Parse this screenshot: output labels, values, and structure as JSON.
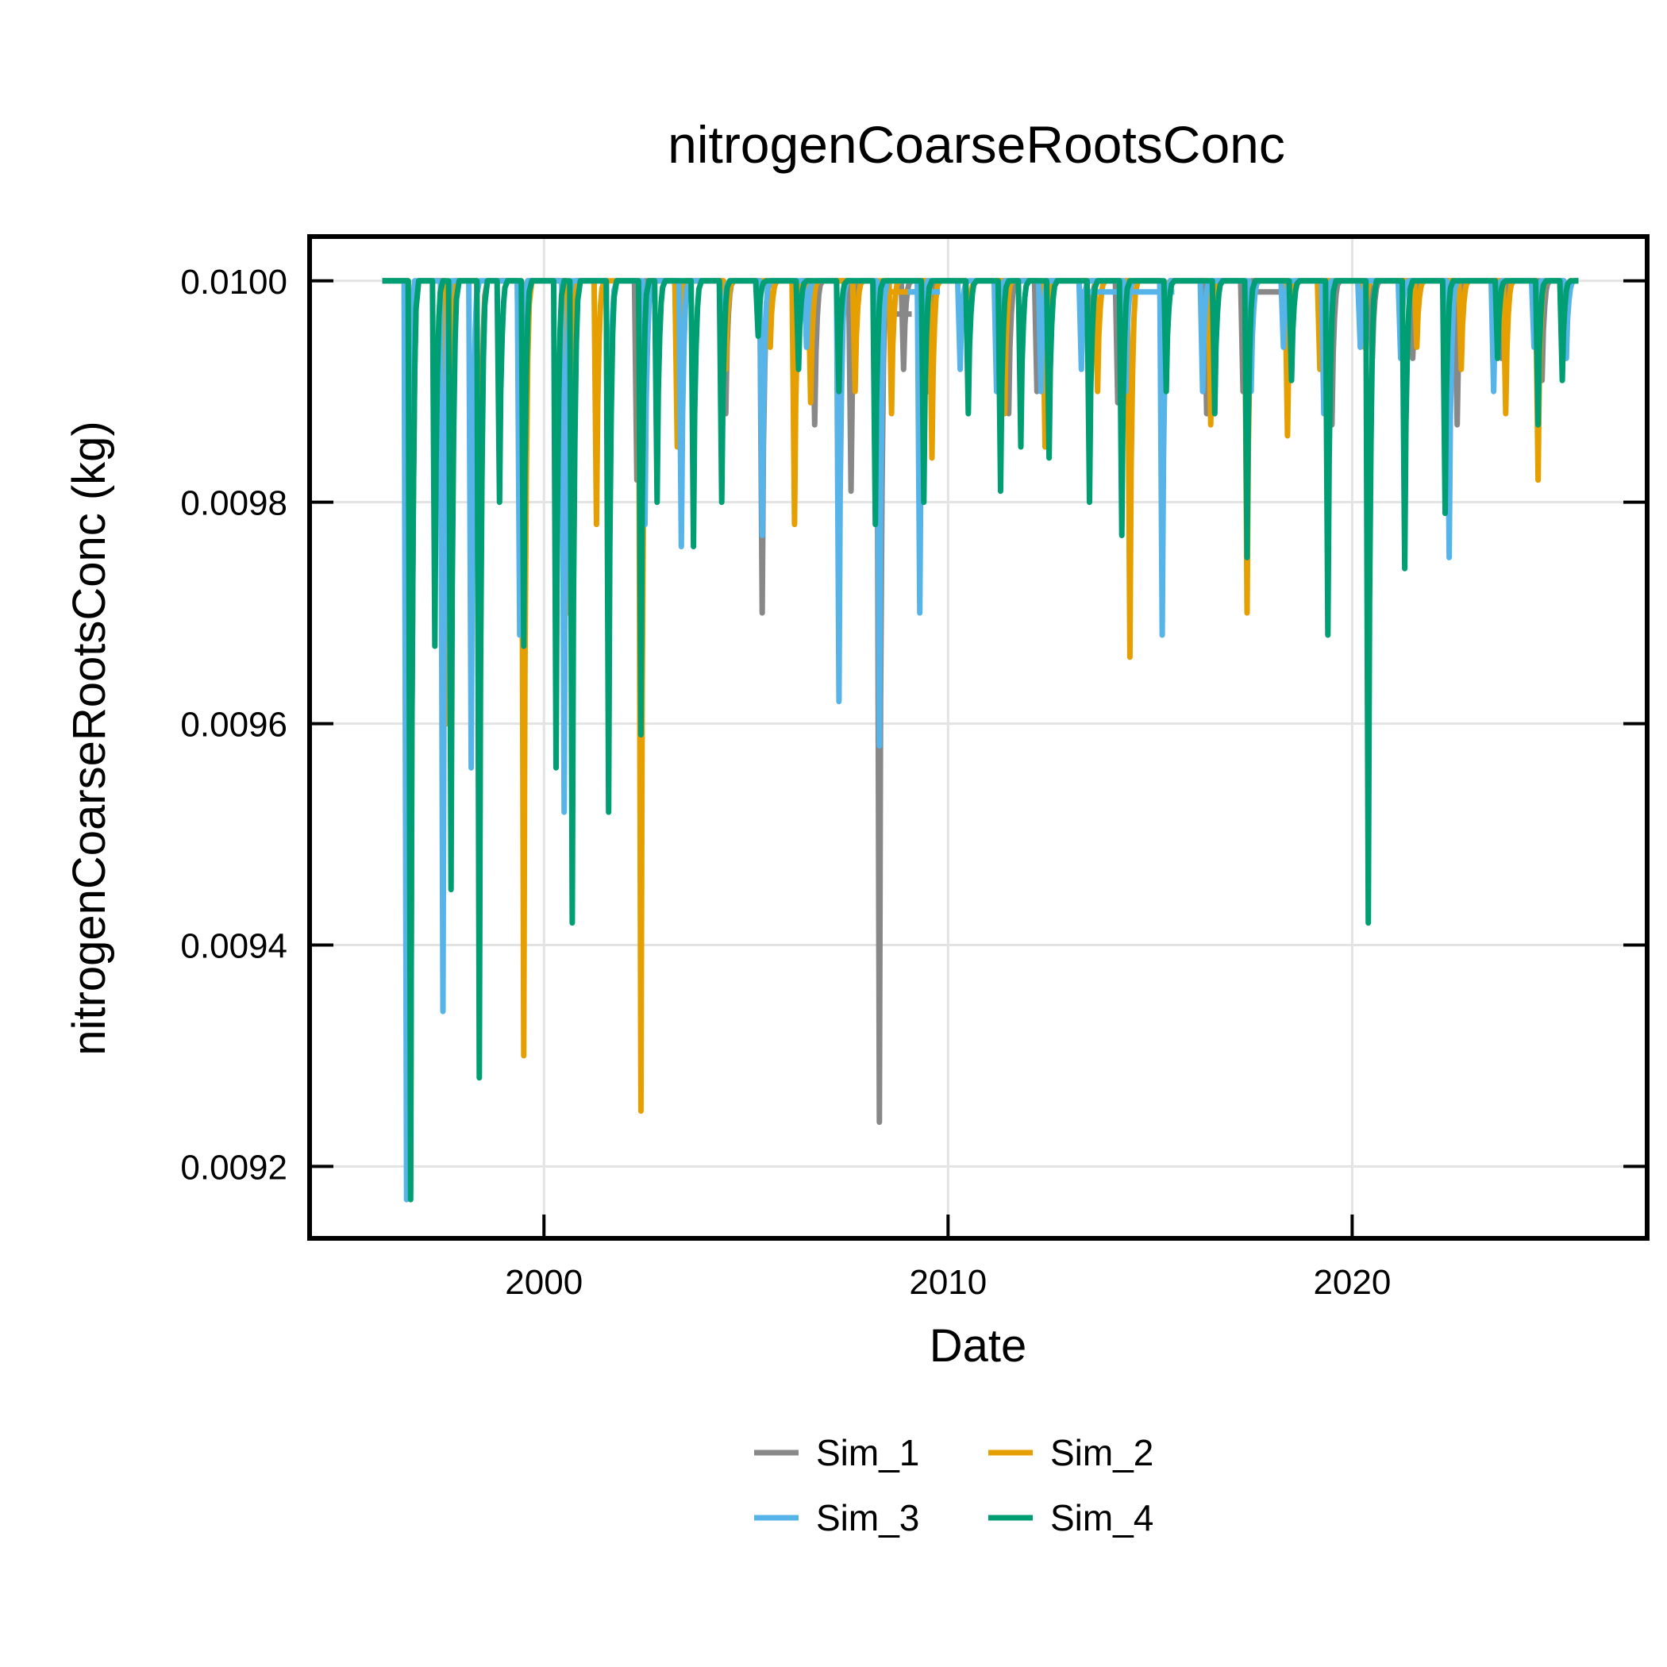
{
  "chart_data": {
    "type": "line",
    "title": "nitrogenCoarseRootsConc",
    "xlabel": "Date",
    "ylabel": "nitrogenCoarseRootsConc (kg)",
    "xlim": [
      1994.2,
      2027.3
    ],
    "ylim": [
      0.009135,
      0.01004
    ],
    "xticks": [
      2000,
      2010,
      2020
    ],
    "xtick_labels": [
      "2000",
      "2010",
      "2020"
    ],
    "yticks": [
      0.0092,
      0.0094,
      0.0096,
      0.0098,
      0.01
    ],
    "ytick_labels": [
      "0.0092",
      "0.0094",
      "0.0096",
      "0.0098",
      "0.0100"
    ],
    "grid": true,
    "legend_position": "bottom-center",
    "start": 1996.0,
    "end": 2025.6,
    "baseline": 0.01,
    "series": [
      {
        "name": "Sim_1",
        "color": "#888888",
        "dips": [
          [
            1996.7,
            0.0092
          ],
          [
            1997.6,
            0.00975
          ],
          [
            1998.4,
            0.00955
          ],
          [
            1999.4,
            0.0098
          ],
          [
            2000.6,
            0.00975
          ],
          [
            2001.6,
            0.00965
          ],
          [
            2002.3,
            0.00982
          ],
          [
            2003.3,
            0.00988
          ],
          [
            2004.5,
            0.00988
          ],
          [
            2005.4,
            0.0097
          ],
          [
            2006.2,
            0.0099
          ],
          [
            2006.7,
            0.00987
          ],
          [
            2007.6,
            0.00981
          ],
          [
            2008.3,
            0.00924
          ],
          [
            2008.9,
            0.00992
          ],
          [
            2009.5,
            0.0099
          ],
          [
            2010.5,
            0.00994
          ],
          [
            2011.5,
            0.00988
          ],
          [
            2012.2,
            0.0099
          ],
          [
            2013.5,
            0.00992
          ],
          [
            2014.2,
            0.00989
          ],
          [
            2015.3,
            0.00985
          ],
          [
            2016.4,
            0.00988
          ],
          [
            2017.3,
            0.0099
          ],
          [
            2018.5,
            0.00994
          ],
          [
            2019.5,
            0.00987
          ],
          [
            2020.5,
            0.00993
          ],
          [
            2021.5,
            0.00993
          ],
          [
            2022.6,
            0.00987
          ],
          [
            2023.7,
            0.00993
          ],
          [
            2024.7,
            0.00991
          ],
          [
            2025.3,
            0.00995
          ]
        ],
        "plateaus": [
          [
            2008.3,
            2009.1,
            0.00997
          ],
          [
            2017.5,
            2018.5,
            0.00999
          ]
        ]
      },
      {
        "name": "Sim_2",
        "color": "#E69F00",
        "dips": [
          [
            1996.7,
            0.00918
          ],
          [
            1997.6,
            0.0096
          ],
          [
            1998.4,
            0.00935
          ],
          [
            1999.5,
            0.0093
          ],
          [
            2000.6,
            0.0097
          ],
          [
            2001.3,
            0.00978
          ],
          [
            2002.4,
            0.00925
          ],
          [
            2003.3,
            0.00985
          ],
          [
            2004.5,
            0.00992
          ],
          [
            2005.6,
            0.00994
          ],
          [
            2006.2,
            0.00978
          ],
          [
            2006.6,
            0.00989
          ],
          [
            2007.7,
            0.0099
          ],
          [
            2008.6,
            0.00988
          ],
          [
            2009.6,
            0.00984
          ],
          [
            2010.5,
            0.00995
          ],
          [
            2011.4,
            0.00988
          ],
          [
            2012.4,
            0.00985
          ],
          [
            2013.7,
            0.0099
          ],
          [
            2014.5,
            0.00966
          ],
          [
            2015.3,
            0.00992
          ],
          [
            2016.5,
            0.00987
          ],
          [
            2017.4,
            0.0097
          ],
          [
            2018.4,
            0.00986
          ],
          [
            2019.2,
            0.00992
          ],
          [
            2020.3,
            0.00994
          ],
          [
            2021.6,
            0.00994
          ],
          [
            2022.7,
            0.00992
          ],
          [
            2023.8,
            0.00988
          ],
          [
            2024.6,
            0.00982
          ],
          [
            2025.2,
            0.00993
          ]
        ],
        "plateaus": [
          [
            2008.5,
            2009.2,
            0.00999
          ]
        ]
      },
      {
        "name": "Sim_3",
        "color": "#56B4E9",
        "dips": [
          [
            1996.6,
            0.00917
          ],
          [
            1997.5,
            0.00934
          ],
          [
            1998.2,
            0.00956
          ],
          [
            1999.4,
            0.00968
          ],
          [
            2000.5,
            0.00952
          ],
          [
            2001.6,
            0.00972
          ],
          [
            2002.5,
            0.00978
          ],
          [
            2003.4,
            0.00976
          ],
          [
            2004.4,
            0.0099
          ],
          [
            2005.4,
            0.00977
          ],
          [
            2006.5,
            0.00994
          ],
          [
            2007.3,
            0.00962
          ],
          [
            2008.3,
            0.00958
          ],
          [
            2009.3,
            0.0097
          ],
          [
            2010.3,
            0.00992
          ],
          [
            2011.2,
            0.0099
          ],
          [
            2012.3,
            0.0099
          ],
          [
            2013.3,
            0.00992
          ],
          [
            2014.4,
            0.0099
          ],
          [
            2015.3,
            0.00968
          ],
          [
            2016.3,
            0.0099
          ],
          [
            2017.5,
            0.0099
          ],
          [
            2018.3,
            0.00994
          ],
          [
            2019.3,
            0.00988
          ],
          [
            2020.2,
            0.00994
          ],
          [
            2021.2,
            0.00993
          ],
          [
            2022.4,
            0.00975
          ],
          [
            2023.5,
            0.0099
          ],
          [
            2024.5,
            0.00994
          ],
          [
            2025.3,
            0.00993
          ]
        ],
        "plateaus": [
          [
            2009.0,
            2009.8,
            0.00999
          ],
          [
            2013.2,
            2015.6,
            0.00999
          ]
        ]
      },
      {
        "name": "Sim_4",
        "color": "#009E73",
        "dips": [
          [
            1996.7,
            0.00917
          ],
          [
            1997.3,
            0.00967
          ],
          [
            1997.7,
            0.00945
          ],
          [
            1998.4,
            0.00928
          ],
          [
            1998.9,
            0.0098
          ],
          [
            1999.5,
            0.00967
          ],
          [
            2000.3,
            0.00956
          ],
          [
            2000.7,
            0.00942
          ],
          [
            2001.6,
            0.00952
          ],
          [
            2002.4,
            0.00959
          ],
          [
            2002.8,
            0.0098
          ],
          [
            2003.7,
            0.00976
          ],
          [
            2004.4,
            0.0098
          ],
          [
            2005.3,
            0.00995
          ],
          [
            2006.3,
            0.00992
          ],
          [
            2007.3,
            0.0099
          ],
          [
            2008.2,
            0.00978
          ],
          [
            2009.4,
            0.0098
          ],
          [
            2010.5,
            0.00988
          ],
          [
            2011.3,
            0.00981
          ],
          [
            2011.8,
            0.00985
          ],
          [
            2012.5,
            0.00984
          ],
          [
            2013.5,
            0.0098
          ],
          [
            2014.3,
            0.00977
          ],
          [
            2015.4,
            0.0099
          ],
          [
            2016.6,
            0.00988
          ],
          [
            2017.4,
            0.00975
          ],
          [
            2018.5,
            0.00991
          ],
          [
            2019.4,
            0.00968
          ],
          [
            2020.4,
            0.00942
          ],
          [
            2021.3,
            0.00974
          ],
          [
            2022.3,
            0.00979
          ],
          [
            2023.6,
            0.00993
          ],
          [
            2024.6,
            0.00987
          ],
          [
            2025.2,
            0.00991
          ]
        ],
        "plateaus": []
      }
    ]
  }
}
